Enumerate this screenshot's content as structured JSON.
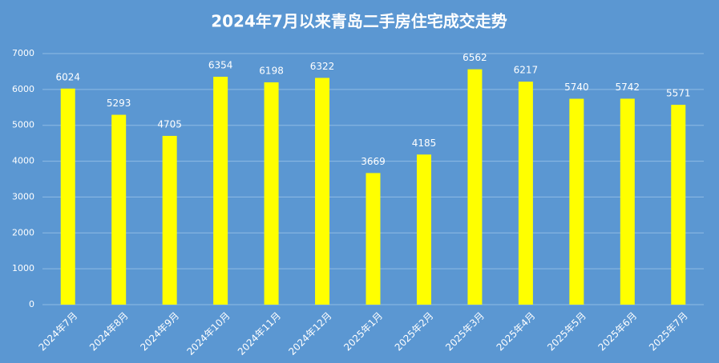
{
  "chart_data": {
    "type": "bar",
    "title": "2024年7月以来青岛二手房住宅成交走势",
    "categories": [
      "2024年7月",
      "2024年8月",
      "2024年9月",
      "2024年10月",
      "2024年11月",
      "2024年12月",
      "2025年1月",
      "2025年2月",
      "2025年3月",
      "2025年4月",
      "2025年5月",
      "2025年6月",
      "2025年7月"
    ],
    "values": [
      6024,
      5293,
      4705,
      6354,
      6198,
      6322,
      3669,
      4185,
      6562,
      6217,
      5740,
      5742,
      5571
    ],
    "color": "#ffff00",
    "ylim": [
      0,
      7000
    ],
    "yticks": [
      0,
      1000,
      2000,
      3000,
      4000,
      5000,
      6000,
      7000
    ],
    "grid": true
  }
}
